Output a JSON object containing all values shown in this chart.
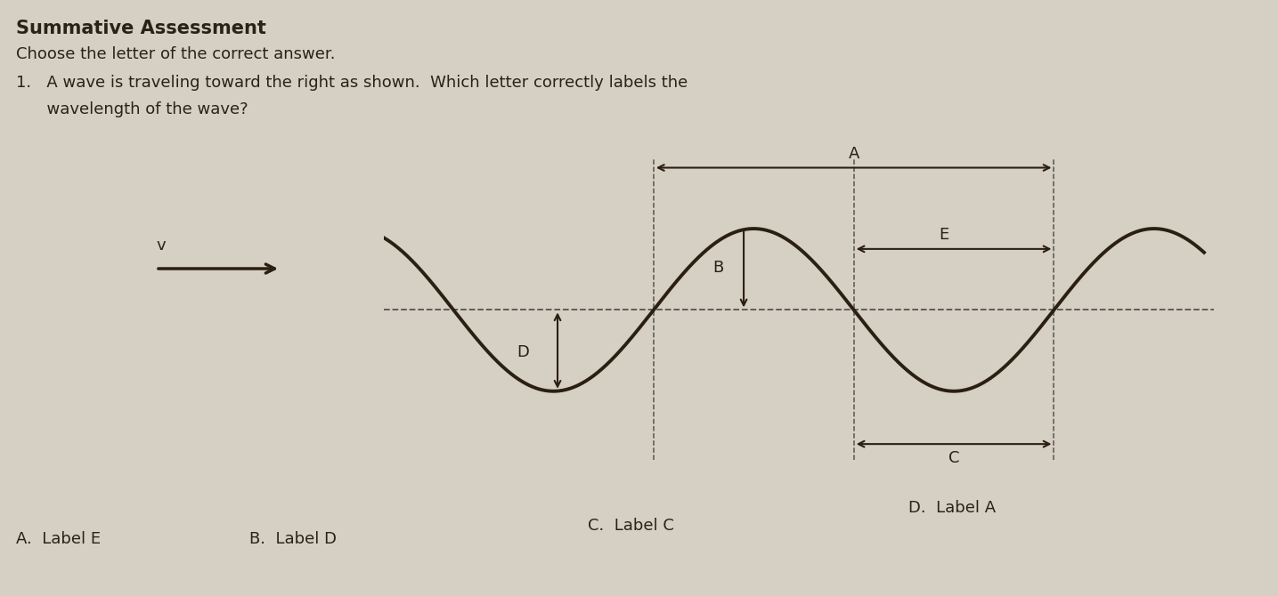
{
  "bg_color": "#d6cfc3",
  "text_color": "#2a2218",
  "wave_color": "#2a1f10",
  "dashed_color": "#555555",
  "arrow_color": "#2a1f10",
  "title": "Summative Assessment",
  "title_fontsize": 15,
  "question_text": "Choose the letter of the correct answer.",
  "q1_part1": "1.   A wave is traveling toward the right as shown.  Which letter correctly labels the",
  "q1_part2": "      wavelength of the wave?",
  "answers": [
    "A.  Label E",
    "B.  Label D",
    "C.  Label C",
    "D.  Label A"
  ],
  "velocity_label": "v",
  "label_A": "A",
  "label_B": "B",
  "label_C": "C",
  "label_D": "D",
  "label_E": "E",
  "label_fontsize": 13,
  "wave_linewidth": 2.8
}
